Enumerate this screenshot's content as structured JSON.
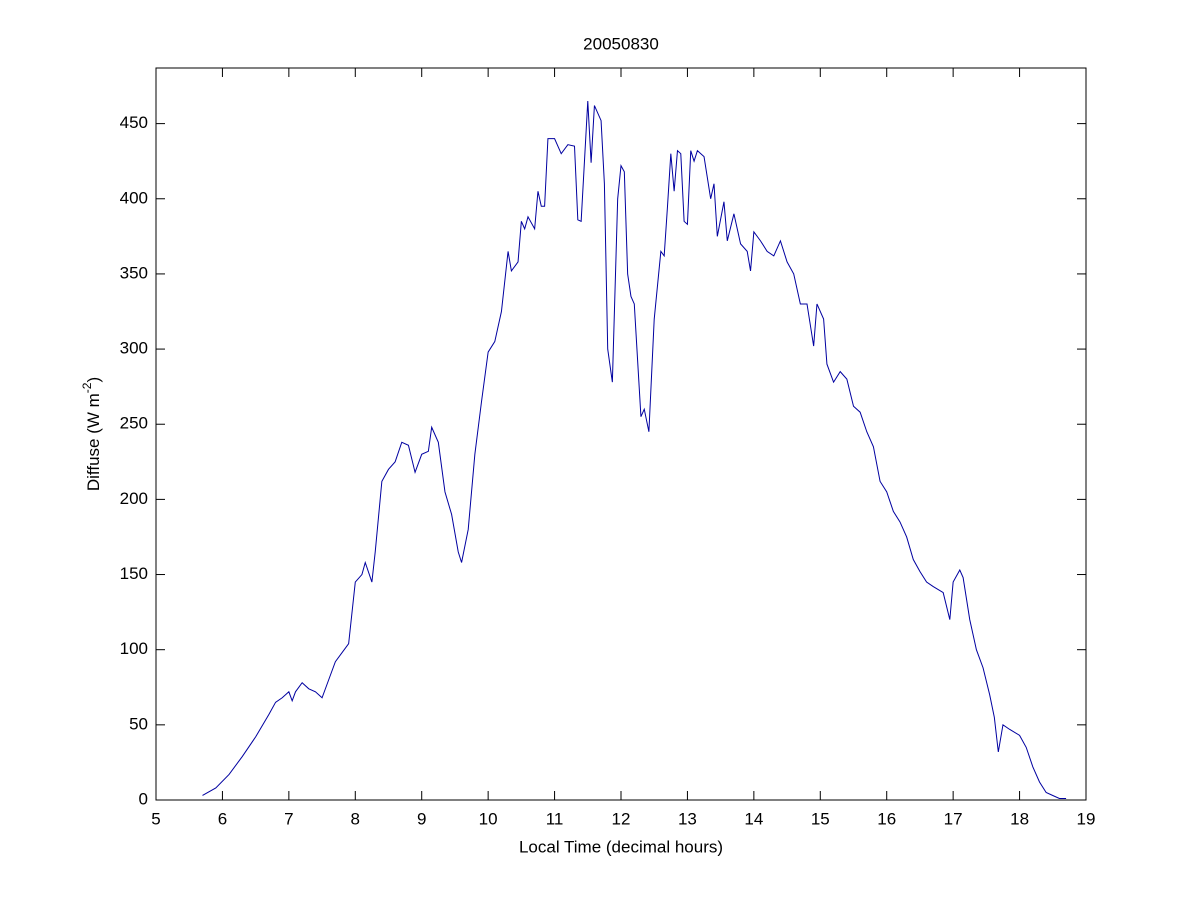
{
  "chart_data": {
    "type": "line",
    "title": "20050830",
    "xlabel": "Local Time (decimal hours)",
    "ylabel": {
      "text": "Diffuse (W m",
      "superscript": "-2",
      "suffix": ")"
    },
    "xlim": [
      5,
      19
    ],
    "xticks": [
      5,
      6,
      7,
      8,
      9,
      10,
      11,
      12,
      13,
      14,
      15,
      16,
      17,
      18,
      19
    ],
    "ylim": [
      0,
      487
    ],
    "yticks": [
      0,
      50,
      100,
      150,
      200,
      250,
      300,
      350,
      400,
      450
    ],
    "grid": false,
    "series": [
      {
        "color": "#0000a0",
        "x": [
          5.7,
          5.9,
          6.1,
          6.3,
          6.5,
          6.7,
          6.8,
          6.9,
          7.0,
          7.05,
          7.1,
          7.2,
          7.3,
          7.4,
          7.5,
          7.6,
          7.7,
          7.8,
          7.9,
          8.0,
          8.1,
          8.15,
          8.25,
          8.3,
          8.4,
          8.5,
          8.6,
          8.7,
          8.8,
          8.9,
          9.0,
          9.1,
          9.15,
          9.25,
          9.35,
          9.45,
          9.55,
          9.6,
          9.7,
          9.8,
          9.9,
          10.0,
          10.1,
          10.2,
          10.3,
          10.35,
          10.45,
          10.5,
          10.55,
          10.6,
          10.7,
          10.75,
          10.8,
          10.85,
          10.9,
          11.0,
          11.1,
          11.2,
          11.3,
          11.35,
          11.4,
          11.5,
          11.55,
          11.6,
          11.7,
          11.75,
          11.8,
          11.87,
          11.95,
          12.0,
          12.05,
          12.1,
          12.15,
          12.2,
          12.3,
          12.35,
          12.42,
          12.5,
          12.6,
          12.65,
          12.7,
          12.75,
          12.8,
          12.85,
          12.9,
          12.95,
          13.0,
          13.05,
          13.1,
          13.15,
          13.25,
          13.35,
          13.4,
          13.45,
          13.55,
          13.6,
          13.7,
          13.8,
          13.9,
          13.95,
          14.0,
          14.1,
          14.2,
          14.3,
          14.4,
          14.5,
          14.6,
          14.7,
          14.8,
          14.9,
          14.95,
          15.05,
          15.1,
          15.2,
          15.3,
          15.4,
          15.5,
          15.6,
          15.7,
          15.8,
          15.9,
          16.0,
          16.1,
          16.2,
          16.3,
          16.4,
          16.5,
          16.6,
          16.7,
          16.85,
          16.95,
          17.0,
          17.1,
          17.15,
          17.25,
          17.35,
          17.45,
          17.55,
          17.62,
          17.68,
          17.75,
          17.85,
          18.0,
          18.1,
          18.2,
          18.3,
          18.4,
          18.5,
          18.6,
          18.7
        ],
        "values": [
          3,
          8,
          17,
          29,
          42,
          57,
          65,
          68,
          72,
          66,
          72,
          78,
          74,
          72,
          68,
          80,
          92,
          98,
          104,
          145,
          150,
          158,
          145,
          165,
          212,
          220,
          225,
          238,
          236,
          218,
          230,
          232,
          248,
          238,
          205,
          190,
          165,
          158,
          180,
          230,
          265,
          298,
          305,
          325,
          365,
          352,
          358,
          385,
          380,
          388,
          380,
          405,
          395,
          395,
          440,
          440,
          430,
          436,
          435,
          386,
          385,
          465,
          424,
          462,
          452,
          410,
          300,
          278,
          400,
          422,
          418,
          350,
          335,
          330,
          255,
          260,
          245,
          320,
          365,
          362,
          395,
          430,
          405,
          432,
          430,
          385,
          383,
          432,
          425,
          432,
          428,
          400,
          410,
          375,
          398,
          372,
          390,
          370,
          365,
          352,
          378,
          372,
          365,
          362,
          372,
          358,
          350,
          330,
          330,
          302,
          330,
          320,
          290,
          278,
          285,
          280,
          262,
          258,
          245,
          235,
          212,
          205,
          192,
          185,
          175,
          160,
          152,
          145,
          142,
          138,
          120,
          145,
          153,
          148,
          120,
          100,
          88,
          70,
          55,
          32,
          50,
          47,
          43,
          35,
          22,
          12,
          5,
          3,
          1,
          1
        ]
      }
    ]
  }
}
